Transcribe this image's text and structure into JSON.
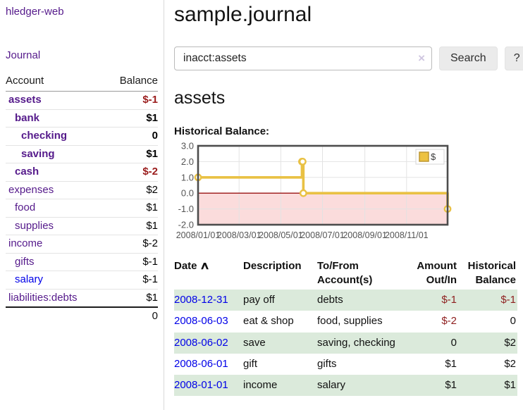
{
  "app": {
    "title": "hledger-web"
  },
  "sidebar": {
    "journal_link": "Journal",
    "table": {
      "account_header": "Account",
      "balance_header": "Balance",
      "total": "0"
    },
    "accounts": [
      {
        "name": "assets",
        "balance": "$-1",
        "level": 1,
        "bold": true,
        "neg": true
      },
      {
        "name": "bank",
        "balance": "$1",
        "level": 2,
        "bold": true,
        "neg": false
      },
      {
        "name": "checking",
        "balance": "0",
        "level": 3,
        "bold": true,
        "neg": false
      },
      {
        "name": "saving",
        "balance": "$1",
        "level": 3,
        "bold": true,
        "neg": false
      },
      {
        "name": "cash",
        "balance": "$-2",
        "level": 2,
        "bold": true,
        "neg": true
      },
      {
        "name": "expenses",
        "balance": "$2",
        "level": 1,
        "bold": false,
        "neg": false
      },
      {
        "name": "food",
        "balance": "$1",
        "level": 2,
        "bold": false,
        "neg": false
      },
      {
        "name": "supplies",
        "balance": "$1",
        "level": 2,
        "bold": false,
        "neg": false
      },
      {
        "name": "income",
        "balance": "$-2",
        "level": 1,
        "bold": false,
        "neg": true
      },
      {
        "name": "gifts",
        "balance": "$-1",
        "level": 2,
        "bold": false,
        "neg": true
      },
      {
        "name": "salary",
        "balance": "$-1",
        "level": 2,
        "bold": false,
        "neg": true,
        "blue": true
      },
      {
        "name": "liabilities:debts",
        "balance": "$1",
        "level": 1,
        "bold": false,
        "neg": false
      }
    ]
  },
  "header": {
    "title": "sample.journal"
  },
  "search": {
    "value": "inacct:assets",
    "clear_icon": "×",
    "button_label": "Search",
    "help_label": "?"
  },
  "main": {
    "account_heading": "assets",
    "chart_label": "Historical Balance:"
  },
  "chart_data": {
    "type": "line",
    "style": "step-after",
    "title": "Historical Balance of assets",
    "legend": [
      {
        "label": "$",
        "color": "#edc240"
      }
    ],
    "legend_position": "top-right",
    "grid": true,
    "ylim": [
      -2,
      3
    ],
    "xlim_days": [
      0,
      365
    ],
    "y_ticks": [
      {
        "label": "3.0",
        "value": 3
      },
      {
        "label": "2.0",
        "value": 2
      },
      {
        "label": "1.0",
        "value": 1
      },
      {
        "label": "0.0",
        "value": 0
      },
      {
        "label": "-1.0",
        "value": -1
      },
      {
        "label": "-2.0",
        "value": -2
      }
    ],
    "x_ticks": [
      {
        "label": "2008/01/01",
        "day": 0
      },
      {
        "label": "2008/03/01",
        "day": 60
      },
      {
        "label": "2008/05/01",
        "day": 121
      },
      {
        "label": "2008/07/01",
        "day": 182
      },
      {
        "label": "2008/09/01",
        "day": 244
      },
      {
        "label": "2008/11/01",
        "day": 305
      }
    ],
    "series": [
      {
        "name": "$",
        "points": [
          {
            "date": "2008-01-01",
            "day": 0,
            "value": 1
          },
          {
            "date": "2008-06-01",
            "day": 152,
            "value": 2
          },
          {
            "date": "2008-06-02",
            "day": 153,
            "value": 2
          },
          {
            "date": "2008-06-03",
            "day": 154,
            "value": 0
          },
          {
            "date": "2008-12-31",
            "day": 365,
            "value": -1
          }
        ]
      }
    ],
    "line_color": "#e9c144",
    "marker_style": "open-circle",
    "zero_line_color": "#991111",
    "negative_region_color": "#fbdcdc",
    "grid_color": "#e3e3e3",
    "border_color": "#4d4d4d",
    "tick_color": "#545454"
  },
  "register": {
    "headers": {
      "date": "Date",
      "sort_icon": "∧",
      "description": "Description",
      "tofrom_line1": "To/From",
      "tofrom_line2": "Account(s)",
      "amount_line1": "Amount",
      "amount_line2": "Out/In",
      "balance_line1": "Historical",
      "balance_line2": "Balance"
    },
    "rows": [
      {
        "date": "2008-12-31",
        "description": "pay off",
        "accounts": "debts",
        "amount": "$-1",
        "amount_neg": true,
        "balance": "$-1",
        "balance_neg": true
      },
      {
        "date": "2008-06-03",
        "description": "eat & shop",
        "accounts": "food, supplies",
        "amount": "$-2",
        "amount_neg": true,
        "balance": "0",
        "balance_neg": false
      },
      {
        "date": "2008-06-02",
        "description": "save",
        "accounts": "saving, checking",
        "amount": "0",
        "amount_neg": false,
        "balance": "$2",
        "balance_neg": false
      },
      {
        "date": "2008-06-01",
        "description": "gift",
        "accounts": "gifts",
        "amount": "$1",
        "amount_neg": false,
        "balance": "$2",
        "balance_neg": false
      },
      {
        "date": "2008-01-01",
        "description": "income",
        "accounts": "salary",
        "amount": "$1",
        "amount_neg": false,
        "balance": "$1",
        "balance_neg": false
      }
    ]
  }
}
